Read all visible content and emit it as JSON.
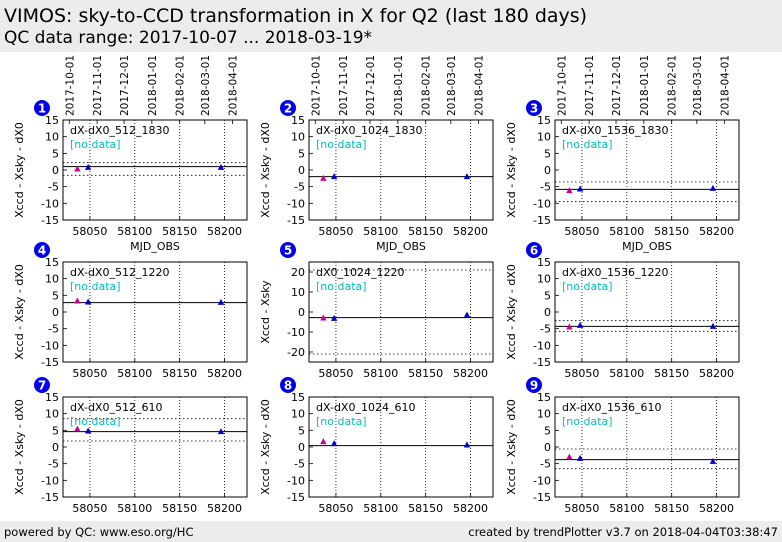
{
  "header": {
    "title": "VIMOS: sky-to-CCD transformation in X for Q2 (last 180 days)",
    "subtitle": "QC data range: 2017-10-07 ... 2018-03-19*"
  },
  "footer": {
    "left": "powered by QC: www.eso.org/HC",
    "right": "created by trendPlotter v3.7 on 2018-04-04T03:38:47"
  },
  "colors": {
    "badge": "#0000ee",
    "no_data_text": "#00bfbf",
    "marker_first": "#cc0099",
    "marker_other": "#0000cc",
    "header_bg": "#ececec"
  },
  "chart_data": [
    {
      "index": "1",
      "type": "scatter",
      "label": "dX-dX0_512_1830",
      "note": "[no data]",
      "ylabel": "Xccd - Xsky - dX0",
      "xlabel": "MJD_OBS",
      "date_ticks": [
        "2017-10-01",
        "2017-11-01",
        "2017-12-01",
        "2018-01-01",
        "2018-02-01",
        "2018-03-01",
        "2018-04-01"
      ],
      "xlim": [
        58020,
        58225
      ],
      "xticks": [
        58050,
        58100,
        58150,
        58200
      ],
      "ylim": [
        -15,
        15
      ],
      "yticks": [
        -15,
        -10,
        -5,
        0,
        5,
        10,
        15
      ],
      "points": [
        [
          58036,
          0.3
        ],
        [
          58048,
          0.8
        ],
        [
          58196,
          0.8
        ]
      ],
      "mean": 1.0,
      "limits": [
        2.2,
        -1.6
      ]
    },
    {
      "index": "2",
      "type": "scatter",
      "label": "dX-dX0_1024_1830",
      "note": "[no data]",
      "ylabel": "Xccd - Xsky - dX0",
      "xlabel": "MJD_OBS",
      "date_ticks": [
        "2017-10-01",
        "2017-11-01",
        "2017-12-01",
        "2018-01-01",
        "2018-02-01",
        "2018-03-01",
        "2018-04-01"
      ],
      "xlim": [
        58020,
        58225
      ],
      "xticks": [
        58050,
        58100,
        58150,
        58200
      ],
      "ylim": [
        -15,
        15
      ],
      "yticks": [
        -15,
        -10,
        -5,
        0,
        5,
        10,
        15
      ],
      "points": [
        [
          58036,
          -2.5
        ],
        [
          58048,
          -2.0
        ],
        [
          58196,
          -2.0
        ]
      ],
      "mean": -2.0,
      "limits": []
    },
    {
      "index": "3",
      "type": "scatter",
      "label": "dX-dX0_1536_1830",
      "note": "[no data]",
      "ylabel": "Xccd - Xsky - dX0",
      "xlabel": "MJD_OBS",
      "date_ticks": [
        "2017-10-01",
        "2017-11-01",
        "2017-12-01",
        "2018-01-01",
        "2018-02-01",
        "2018-03-01",
        "2018-04-01"
      ],
      "xlim": [
        58020,
        58225
      ],
      "xticks": [
        58050,
        58100,
        58150,
        58200
      ],
      "ylim": [
        -15,
        15
      ],
      "yticks": [
        -15,
        -10,
        -5,
        0,
        5,
        10,
        15
      ],
      "points": [
        [
          58036,
          -6.2
        ],
        [
          58048,
          -5.7
        ],
        [
          58196,
          -5.5
        ]
      ],
      "mean": -5.8,
      "limits": [
        -3.6,
        -9.5
      ]
    },
    {
      "index": "4",
      "type": "scatter",
      "label": "dX-dX0_512_1220",
      "note": "[no data]",
      "ylabel": "Xccd - Xsky - dX0",
      "xlabel": "",
      "date_ticks": [],
      "xlim": [
        58020,
        58225
      ],
      "xticks": [
        58050,
        58100,
        58150,
        58200
      ],
      "ylim": [
        -15,
        15
      ],
      "yticks": [
        -15,
        -10,
        -5,
        0,
        5,
        10,
        15
      ],
      "points": [
        [
          58036,
          3.3
        ],
        [
          58048,
          3.0
        ],
        [
          58196,
          2.9
        ]
      ],
      "mean": 2.8,
      "limits": []
    },
    {
      "index": "5",
      "type": "scatter",
      "label": "dX0_1024_1220",
      "note": "[no data]",
      "ylabel": "Xccd - Xsky",
      "xlabel": "",
      "date_ticks": [],
      "xlim": [
        58020,
        58225
      ],
      "xticks": [
        58050,
        58100,
        58150,
        58200
      ],
      "ylim": [
        -25,
        25
      ],
      "yticks": [
        -20,
        -10,
        0,
        10,
        20
      ],
      "points": [
        [
          58036,
          -3.0
        ],
        [
          58048,
          -3.2
        ],
        [
          58196,
          -1.5
        ]
      ],
      "mean": -2.8,
      "limits": [
        21,
        -21
      ]
    },
    {
      "index": "6",
      "type": "scatter",
      "label": "dX-dX0_1536_1220",
      "note": "[no data]",
      "ylabel": "Xccd - Xsky - dX0",
      "xlabel": "",
      "date_ticks": [],
      "xlim": [
        58020,
        58225
      ],
      "xticks": [
        58050,
        58100,
        58150,
        58200
      ],
      "ylim": [
        -15,
        15
      ],
      "yticks": [
        -15,
        -10,
        -5,
        0,
        5,
        10,
        15
      ],
      "points": [
        [
          58036,
          -4.5
        ],
        [
          58048,
          -4.0
        ],
        [
          58196,
          -4.3
        ]
      ],
      "mean": -4.3,
      "limits": [
        -2.6,
        -5.8
      ]
    },
    {
      "index": "7",
      "type": "scatter",
      "label": "dX-dX0_512_610",
      "note": "[no data]",
      "ylabel": "Xccd - Xsky - dX0",
      "xlabel": "",
      "date_ticks": [],
      "xlim": [
        58020,
        58225
      ],
      "xticks": [
        58050,
        58100,
        58150,
        58200
      ],
      "ylim": [
        -15,
        15
      ],
      "yticks": [
        -15,
        -10,
        -5,
        0,
        5,
        10,
        15
      ],
      "points": [
        [
          58036,
          5.4
        ],
        [
          58048,
          4.8
        ],
        [
          58196,
          4.6
        ]
      ],
      "mean": 4.6,
      "limits": [
        8.5,
        1.8
      ]
    },
    {
      "index": "8",
      "type": "scatter",
      "label": "dX-dX0_1024_610",
      "note": "[no data]",
      "ylabel": "Xccd - Xsky - dX0",
      "xlabel": "",
      "date_ticks": [],
      "xlim": [
        58020,
        58225
      ],
      "xticks": [
        58050,
        58100,
        58150,
        58200
      ],
      "ylim": [
        -15,
        15
      ],
      "yticks": [
        -15,
        -10,
        -5,
        0,
        5,
        10,
        15
      ],
      "points": [
        [
          58036,
          1.6
        ],
        [
          58048,
          1.0
        ],
        [
          58196,
          0.6
        ]
      ],
      "mean": 0.4,
      "limits": []
    },
    {
      "index": "9",
      "type": "scatter",
      "label": "dX-dX0_1536_610",
      "note": "[no data]",
      "ylabel": "Xccd - Xsky - dX0",
      "xlabel": "",
      "date_ticks": [],
      "xlim": [
        58020,
        58225
      ],
      "xticks": [
        58050,
        58100,
        58150,
        58200
      ],
      "ylim": [
        -15,
        15
      ],
      "yticks": [
        -15,
        -10,
        -5,
        0,
        5,
        10,
        15
      ],
      "points": [
        [
          58036,
          -3.0
        ],
        [
          58048,
          -3.4
        ],
        [
          58196,
          -4.3
        ]
      ],
      "mean": -3.8,
      "limits": [
        -0.6,
        -6.5
      ]
    }
  ]
}
